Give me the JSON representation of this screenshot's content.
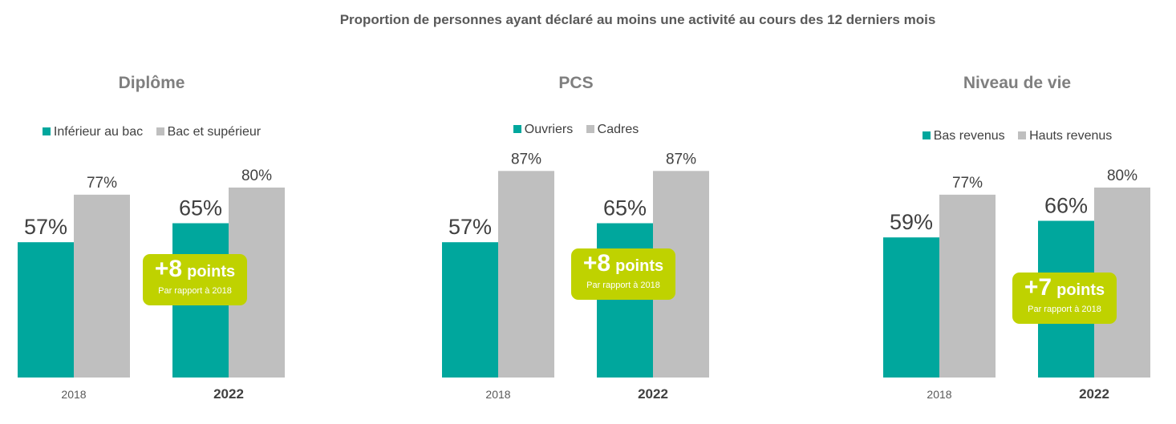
{
  "title": "Proportion de personnes ayant déclaré au moins une activité au cours des 12 derniers mois",
  "colors": {
    "series_1": "#00a79d",
    "series_2": "#bfbfbf",
    "badge": "#bfd200"
  },
  "chart_data": [
    {
      "type": "bar",
      "title": "Diplôme",
      "categories": [
        "2018",
        "2022"
      ],
      "series": [
        {
          "name": "Inférieur au bac",
          "values": [
            57,
            65
          ]
        },
        {
          "name": "Bac et supérieur",
          "values": [
            77,
            80
          ]
        }
      ],
      "value_labels": [
        [
          "57%",
          "65%"
        ],
        [
          "77%",
          "80%"
        ]
      ],
      "ylim": [
        0,
        100
      ],
      "grid": false,
      "legend": "top",
      "annotation": {
        "value": "+8",
        "unit": "points",
        "note": "Par rapport à 2018"
      }
    },
    {
      "type": "bar",
      "title": "PCS",
      "categories": [
        "2018",
        "2022"
      ],
      "series": [
        {
          "name": "Ouvriers",
          "values": [
            57,
            65
          ]
        },
        {
          "name": "Cadres",
          "values": [
            87,
            87
          ]
        }
      ],
      "value_labels": [
        [
          "57%",
          "65%"
        ],
        [
          "87%",
          "87%"
        ]
      ],
      "ylim": [
        0,
        100
      ],
      "grid": false,
      "legend": "top",
      "annotation": {
        "value": "+8",
        "unit": "points",
        "note": "Par rapport à 2018"
      }
    },
    {
      "type": "bar",
      "title": "Niveau de vie",
      "categories": [
        "2018",
        "2022"
      ],
      "series": [
        {
          "name": "Bas revenus",
          "values": [
            59,
            66
          ]
        },
        {
          "name": "Hauts revenus",
          "values": [
            77,
            80
          ]
        }
      ],
      "value_labels": [
        [
          "59%",
          "66%"
        ],
        [
          "77%",
          "80%"
        ]
      ],
      "ylim": [
        0,
        100
      ],
      "grid": false,
      "legend": "top",
      "annotation": {
        "value": "+7",
        "unit": "points",
        "note": "Par rapport à 2018"
      }
    }
  ]
}
